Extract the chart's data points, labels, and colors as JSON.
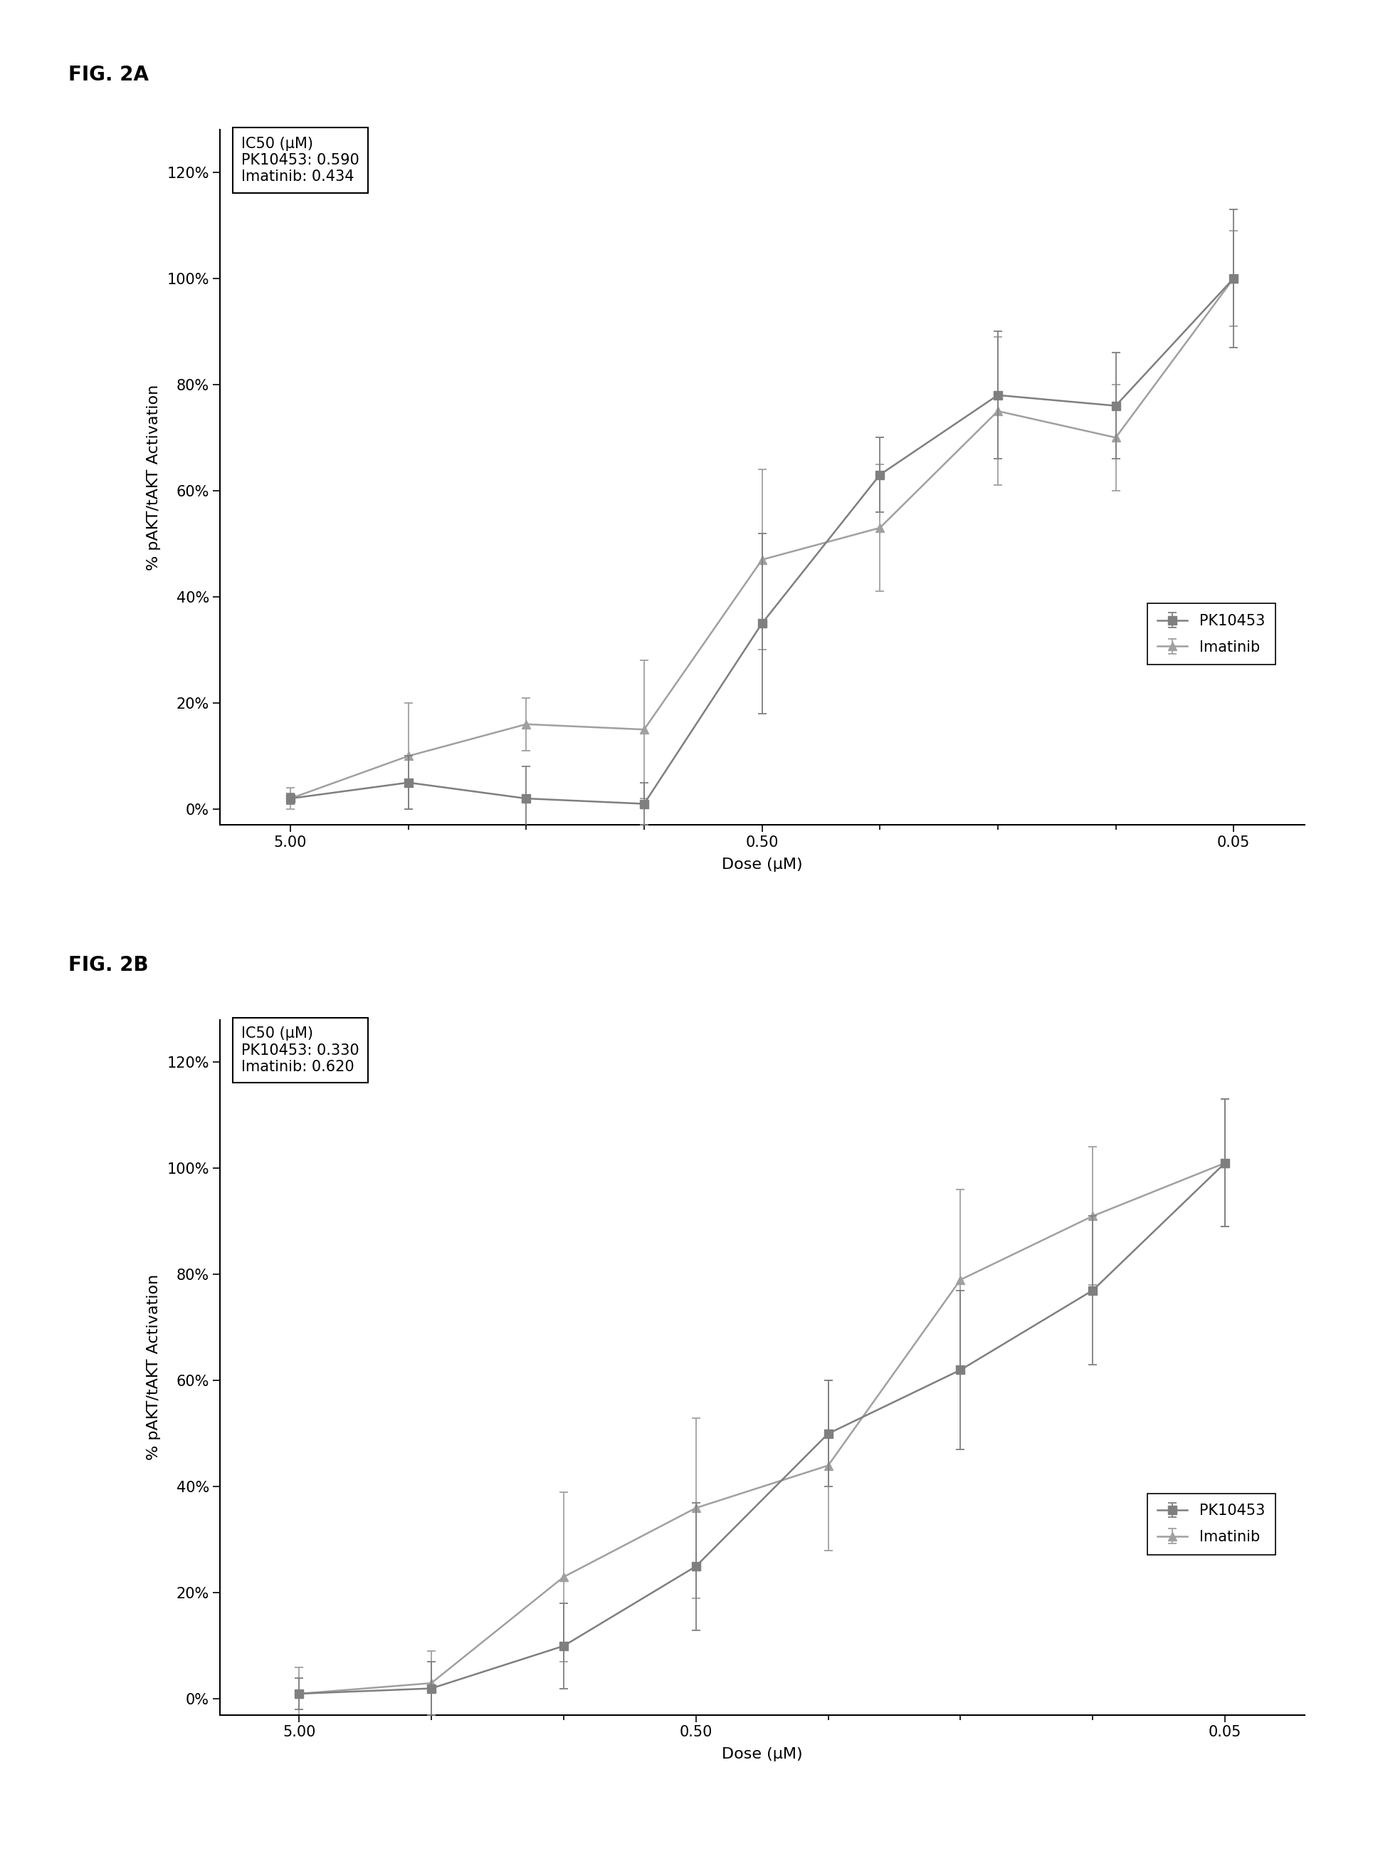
{
  "fig_a": {
    "title": "FIG. 2A",
    "ic50_text": "IC50 (μM)\nPK10453: 0.590\nImatinib: 0.434",
    "xlabel": "Dose (μM)",
    "ylabel": "% pAKT/tAKT Activation",
    "pk10453_y": [
      0.02,
      0.05,
      0.02,
      0.01,
      0.35,
      0.63,
      0.78,
      0.76,
      1.0
    ],
    "pk10453_err": [
      0.01,
      0.05,
      0.06,
      0.04,
      0.17,
      0.07,
      0.12,
      0.1,
      0.13
    ],
    "imatinib_y": [
      0.02,
      0.1,
      0.16,
      0.15,
      0.47,
      0.53,
      0.75,
      0.7,
      1.0
    ],
    "imatinib_err": [
      0.02,
      0.1,
      0.05,
      0.13,
      0.17,
      0.12,
      0.14,
      0.1,
      0.09
    ],
    "ylim": [
      -0.03,
      1.28
    ],
    "yticks": [
      0.0,
      0.2,
      0.4,
      0.6,
      0.8,
      1.0,
      1.2
    ],
    "yticklabels": [
      "0%",
      "20%",
      "40%",
      "60%",
      "80%",
      "100%",
      "120%"
    ]
  },
  "fig_b": {
    "title": "FIG. 2B",
    "ic50_text": "IC50 (μM)\nPK10453: 0.330\nImatinib: 0.620",
    "xlabel": "Dose (μM)",
    "ylabel": "% pAKT/tAKT Activation",
    "pk10453_y": [
      0.01,
      0.02,
      0.1,
      0.25,
      0.5,
      0.62,
      0.77,
      1.01
    ],
    "pk10453_err": [
      0.03,
      0.05,
      0.08,
      0.12,
      0.1,
      0.15,
      0.14,
      0.12
    ],
    "imatinib_y": [
      0.01,
      0.03,
      0.23,
      0.36,
      0.44,
      0.79,
      0.91,
      1.01
    ],
    "imatinib_err": [
      0.05,
      0.06,
      0.16,
      0.17,
      0.16,
      0.17,
      0.13,
      0.12
    ],
    "ylim": [
      -0.03,
      1.28
    ],
    "yticks": [
      0.0,
      0.2,
      0.4,
      0.6,
      0.8,
      1.0,
      1.2
    ],
    "yticklabels": [
      "0%",
      "20%",
      "40%",
      "60%",
      "80%",
      "100%",
      "120%"
    ]
  },
  "color_pk10453": "#7f7f7f",
  "color_imatinib": "#a0a0a0",
  "background_color": "#ffffff",
  "marker_size": 8,
  "linewidth": 1.8,
  "capsize": 4,
  "elinewidth": 1.3,
  "capthick": 1.3,
  "title_fontsize": 20,
  "label_fontsize": 16,
  "tick_fontsize": 15,
  "legend_fontsize": 15,
  "ic50_fontsize": 15
}
